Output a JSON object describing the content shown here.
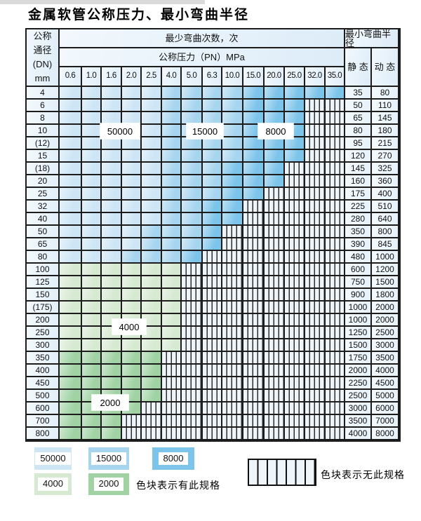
{
  "title": "金属软管公称压力、最小弯曲半径",
  "zones": {
    "L": {
      "label": "50000",
      "color": "#cde5f5"
    },
    "M": {
      "label": "15000",
      "color": "#a7d5ef"
    },
    "D": {
      "label": "8000",
      "color": "#7cc4ea"
    },
    "G": {
      "label": "4000",
      "color": "#d6e9d1"
    },
    "g": {
      "label": "2000",
      "color": "#a0d2a3"
    },
    "X": {
      "label": "无此规格",
      "color": "#edf4fa"
    }
  },
  "table": {
    "header": {
      "dn_label_lines": [
        "公称",
        "通径",
        "(DN)",
        "mm"
      ],
      "bend_cycles_label": "最少弯曲次数，次",
      "pressure_label": "公称压力（PN）MPa",
      "radius_label": "最小弯曲半径",
      "static_label": "静 态",
      "dynamic_label": "动 态",
      "pressure_columns": [
        "0.6",
        "1.0",
        "1.6",
        "2.0",
        "2.5",
        "4.0",
        "5.0",
        "6.3",
        "10.0",
        "15.0",
        "20.0",
        "25.0",
        "32.0",
        "35.0"
      ]
    },
    "rows": [
      {
        "dn": "4",
        "cells": "LLLLLMMMMDDDDD",
        "static": "35",
        "dynamic": "80"
      },
      {
        "dn": "6",
        "cells": "LLLLLMMMMDDDXX",
        "static": "50",
        "dynamic": "110"
      },
      {
        "dn": "8",
        "cells": "LLLLLMMMMDDDXX",
        "static": "65",
        "dynamic": "145"
      },
      {
        "dn": "10",
        "cells": "LLLLLMMMMDDDXX",
        "static": "80",
        "dynamic": "180"
      },
      {
        "dn": "(12)",
        "cells": "LLLLLMMMMDDDXX",
        "static": "95",
        "dynamic": "215"
      },
      {
        "dn": "15",
        "cells": "LLLLLMMMMDDDXX",
        "static": "120",
        "dynamic": "270"
      },
      {
        "dn": "(18)",
        "cells": "LLLLLMMMDDDXXX",
        "static": "145",
        "dynamic": "325"
      },
      {
        "dn": "20",
        "cells": "LLLLLMMMDDDXXX",
        "static": "160",
        "dynamic": "360"
      },
      {
        "dn": "25",
        "cells": "LLLLLMMMDDXXXX",
        "static": "175",
        "dynamic": "400"
      },
      {
        "dn": "32",
        "cells": "LLLLLMMDDXXXXX",
        "static": "225",
        "dynamic": "510"
      },
      {
        "dn": "40",
        "cells": "LLLLLMMDDXXXXX",
        "static": "280",
        "dynamic": "640"
      },
      {
        "dn": "50",
        "cells": "LLLLMMMDXXXXXX",
        "static": "350",
        "dynamic": "800"
      },
      {
        "dn": "65",
        "cells": "LLLLMMMDXXXXXX",
        "static": "390",
        "dynamic": "845"
      },
      {
        "dn": "80",
        "cells": "LLLMMMDXXXXXXX",
        "static": "480",
        "dynamic": "1000"
      },
      {
        "dn": "100",
        "cells": "GGGGGGXXXXXXXX",
        "static": "600",
        "dynamic": "1200"
      },
      {
        "dn": "125",
        "cells": "GGGGGGXXXXXXXX",
        "static": "750",
        "dynamic": "1500"
      },
      {
        "dn": "150",
        "cells": "GGGGGGXXXXXXXX",
        "static": "900",
        "dynamic": "1800"
      },
      {
        "dn": "(175)",
        "cells": "GGGGGGXXXXXXXX",
        "static": "1000",
        "dynamic": "2000"
      },
      {
        "dn": "200",
        "cells": "GGGGGGXXXXXXXX",
        "static": "1000",
        "dynamic": "2000"
      },
      {
        "dn": "250",
        "cells": "GGGGGGXXXXXXXX",
        "static": "1250",
        "dynamic": "2500"
      },
      {
        "dn": "300",
        "cells": "GGGGGGXXXXXXXX",
        "static": "1500",
        "dynamic": "3000"
      },
      {
        "dn": "350",
        "cells": "gggggXXXXXXXXX",
        "static": "1750",
        "dynamic": "3500"
      },
      {
        "dn": "400",
        "cells": "gggggXXXXXXXXX",
        "static": "2000",
        "dynamic": "4000"
      },
      {
        "dn": "450",
        "cells": "gggggXXXXXXXXX",
        "static": "2250",
        "dynamic": "4500"
      },
      {
        "dn": "500",
        "cells": "gggggXXXXXXXXX",
        "static": "2500",
        "dynamic": "5000"
      },
      {
        "dn": "600",
        "cells": "ggggXXXXXXXXXX",
        "static": "3000",
        "dynamic": "6000"
      },
      {
        "dn": "700",
        "cells": "gggXXXXXXXXXXX",
        "static": "3500",
        "dynamic": "7000"
      },
      {
        "dn": "800",
        "cells": "gggXXXXXXXXXXX",
        "static": "4000",
        "dynamic": "8000"
      }
    ]
  },
  "overlay_labels": [
    {
      "text": "50000"
    },
    {
      "text": "15000"
    },
    {
      "text": "8000"
    },
    {
      "text": "4000"
    },
    {
      "text": "2000"
    }
  ],
  "legend": {
    "items": [
      {
        "value": "50000",
        "color": "#cde5f5"
      },
      {
        "value": "15000",
        "color": "#a7d5ef"
      },
      {
        "value": "8000",
        "color": "#7cc4ea"
      },
      {
        "value": "4000",
        "color": "#d6e9d1"
      },
      {
        "value": "2000",
        "color": "#a0d2a3"
      }
    ],
    "has_spec_text": "色块表示有此规格",
    "no_spec_text": "色块表示无此规格"
  }
}
